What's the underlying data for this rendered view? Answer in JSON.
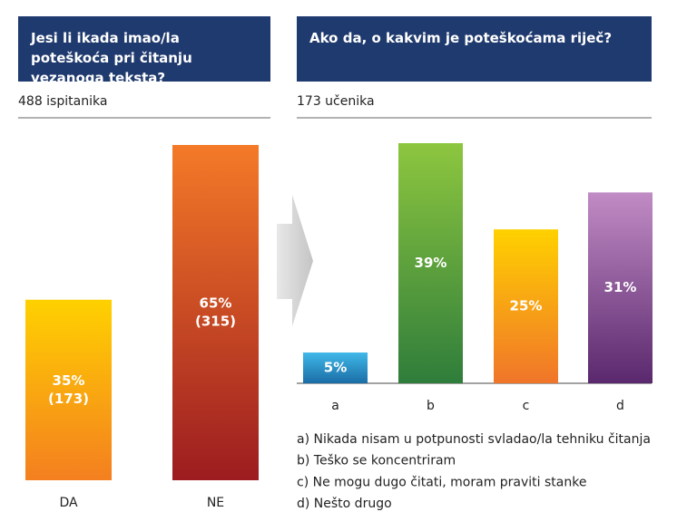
{
  "chart_data": [
    {
      "type": "bar",
      "title": "Jesi li ikada imao/la poteškoća pri čitanju vezanoga teksta?",
      "subtitle": "488 ispitanika",
      "categories": [
        "DA",
        "NE"
      ],
      "values": [
        35,
        65
      ],
      "value_labels": [
        [
          "35%",
          "(173)"
        ],
        [
          "65%",
          "(315)"
        ]
      ],
      "colors": [
        [
          "#ffd100",
          "#f47f20"
        ],
        [
          "#f47a28",
          "#9c1c20"
        ]
      ]
    },
    {
      "type": "bar",
      "title": "Ako da, o kakvim je poteškoćama riječ?",
      "subtitle": "173 učenika",
      "categories": [
        "a",
        "b",
        "c",
        "d"
      ],
      "values": [
        5,
        39,
        25,
        31
      ],
      "value_labels": [
        "5%",
        "39%",
        "25%",
        "31%"
      ],
      "colors": [
        [
          "#40b8e8",
          "#1a6da6"
        ],
        [
          "#8dc63f",
          "#2f7d3b"
        ],
        [
          "#ffd100",
          "#f0752a"
        ],
        [
          "#c18cc5",
          "#5a286d"
        ]
      ],
      "notes": [
        "a) Nikada nisam u potpunosti svladao/la tehniku čitanja",
        "b) Teško se koncentriram",
        "c) Ne mogu dugo čitati, moram praviti stanke",
        "d) Nešto drugo"
      ]
    }
  ]
}
